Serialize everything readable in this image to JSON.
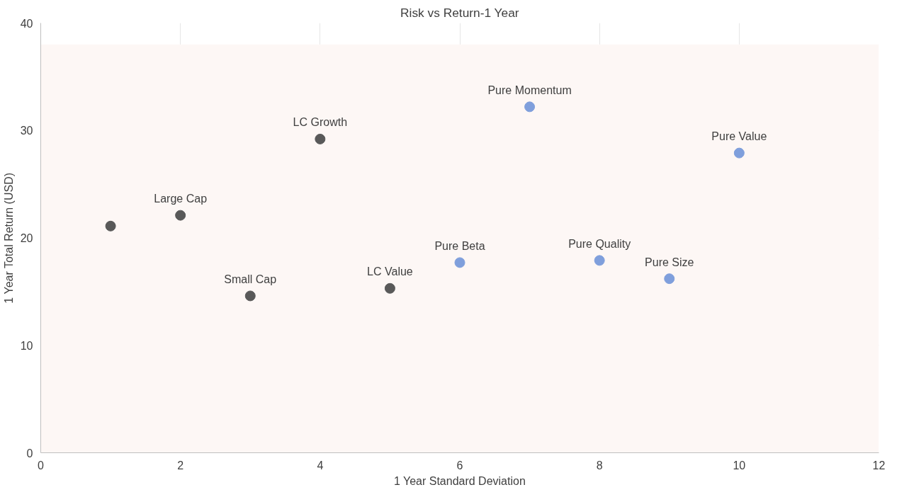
{
  "chart_data": {
    "type": "scatter",
    "title": "Risk vs Return-1 Year",
    "xlabel": "1 Year Standard Deviation",
    "ylabel": "1 Year Total Return (USD)",
    "series": [
      {
        "color": "#595959",
        "x": [
          1,
          2,
          3,
          4,
          5
        ],
        "values": [
          21.1,
          22.1,
          14.6,
          29.2,
          15.3
        ]
      },
      {
        "color": "#7f9fdc",
        "x": [
          6,
          7,
          8,
          9,
          10
        ],
        "values": [
          17.7,
          32.2,
          17.9,
          16.2,
          27.9
        ]
      }
    ],
    "annotations": [
      {
        "text": "Large Cap",
        "x": 2,
        "y": 22.1
      },
      {
        "text": "Small Cap",
        "x": 3,
        "y": 14.6
      },
      {
        "text": "LC Growth",
        "x": 4,
        "y": 29.2
      },
      {
        "text": "LC Value",
        "x": 5,
        "y": 15.3
      },
      {
        "text": "Pure Beta",
        "x": 6,
        "y": 17.7
      },
      {
        "text": "Pure Momentum",
        "x": 7,
        "y": 32.2
      },
      {
        "text": "Pure Quality",
        "x": 8,
        "y": 17.9
      },
      {
        "text": "Pure Size",
        "x": 9,
        "y": 16.2
      },
      {
        "text": "Pure Value",
        "x": 10,
        "y": 27.9
      }
    ],
    "bands": [
      {
        "axis": "y",
        "from": 0,
        "to": 38,
        "color": "#fdf7f5"
      }
    ],
    "xlim": [
      0,
      12
    ],
    "xticks": [
      0,
      2,
      4,
      6,
      8,
      10,
      12
    ],
    "ylim": [
      0,
      40
    ],
    "yticks": [
      0,
      10,
      20,
      30,
      40
    ],
    "grid": true,
    "marker": "circle"
  }
}
